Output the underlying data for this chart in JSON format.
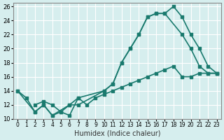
{
  "xlabel": "Humidex (Indice chaleur)",
  "bg_color": "#d6eeee",
  "grid_color": "#ffffff",
  "line_color": "#1a7a6e",
  "line1_x": [
    0,
    1,
    2,
    3,
    4,
    5,
    6,
    7,
    10,
    11,
    12,
    13,
    14,
    15,
    16,
    17,
    18,
    19,
    20,
    21,
    22,
    23
  ],
  "line1_y": [
    14,
    13,
    11,
    12,
    10.5,
    11,
    12,
    12,
    14,
    15,
    18,
    20,
    22,
    24.5,
    25,
    25,
    26,
    24.5,
    22,
    20,
    17.5,
    16.5
  ],
  "line2_x": [
    2,
    3,
    4,
    5,
    6,
    7,
    8,
    9,
    10,
    11,
    12,
    13,
    14,
    15,
    16,
    17,
    18,
    19,
    20,
    21,
    22,
    23
  ],
  "line2_y": [
    12,
    12.5,
    12,
    11,
    10.5,
    13,
    12,
    13,
    13.5,
    14,
    14.5,
    15,
    15.5,
    16,
    16.5,
    17,
    17.5,
    16,
    16,
    16.5,
    16.5,
    16.5
  ],
  "line3_x": [
    0,
    2,
    3,
    4,
    6,
    7,
    10,
    11,
    12,
    13,
    14,
    15,
    16,
    17,
    19,
    20,
    21,
    22,
    23
  ],
  "line3_y": [
    14,
    11,
    12,
    10.5,
    12,
    13,
    14,
    15,
    18,
    20,
    22,
    24.5,
    25,
    25,
    22,
    20,
    17.5,
    16.5,
    16.5
  ],
  "xlim": [
    -0.5,
    23.5
  ],
  "ylim": [
    10,
    26.5
  ],
  "xticks": [
    0,
    1,
    2,
    3,
    4,
    5,
    6,
    7,
    8,
    9,
    10,
    11,
    12,
    13,
    14,
    15,
    16,
    17,
    18,
    19,
    20,
    21,
    22,
    23
  ],
  "yticks": [
    10,
    12,
    14,
    16,
    18,
    20,
    22,
    24,
    26
  ]
}
